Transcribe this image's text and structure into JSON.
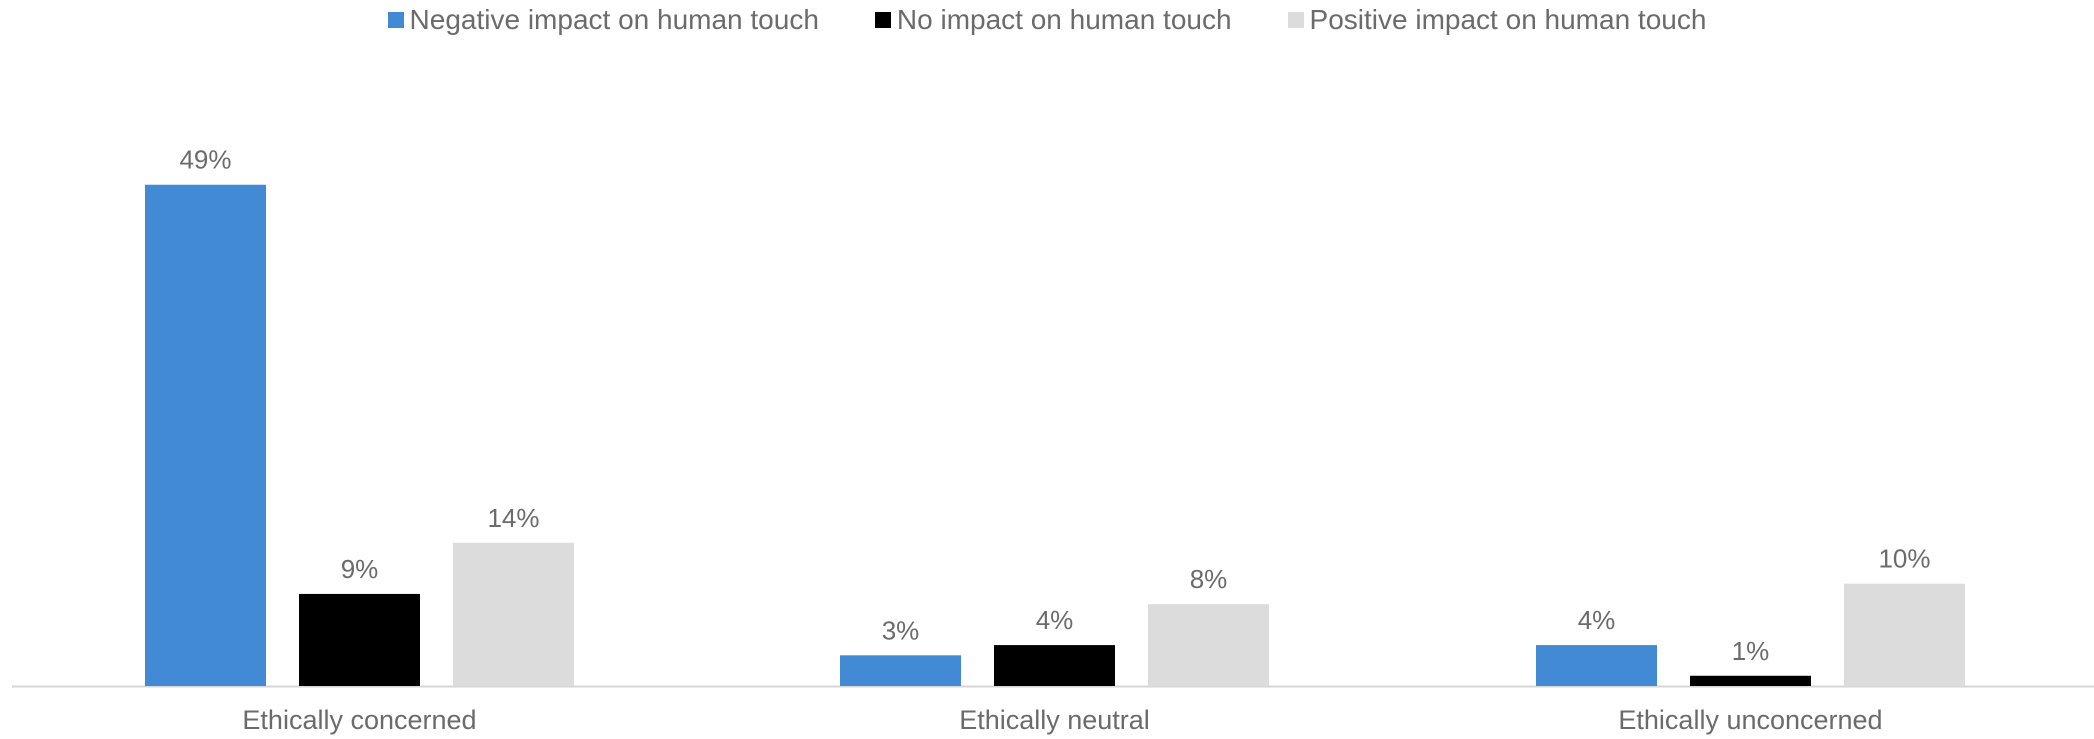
{
  "chart_data": {
    "type": "bar",
    "categories": [
      "Ethically concerned",
      "Ethically neutral",
      "Ethically unconcerned"
    ],
    "series": [
      {
        "name": "Negative impact on human touch",
        "values": [
          49,
          3,
          4
        ],
        "color": "#428BD4"
      },
      {
        "name": "No impact on human touch",
        "values": [
          9,
          4,
          1
        ],
        "color": "#000000"
      },
      {
        "name": "Positive impact on human touch",
        "values": [
          14,
          8,
          10
        ],
        "color": "#DCDCDC"
      }
    ],
    "value_labels": [
      [
        "49%",
        "3%",
        "4%"
      ],
      [
        "9%",
        "4%",
        "1%"
      ],
      [
        "14%",
        "8%",
        "10%"
      ]
    ],
    "legend_position": "top",
    "grid": false,
    "ylim": [
      0,
      50
    ]
  }
}
